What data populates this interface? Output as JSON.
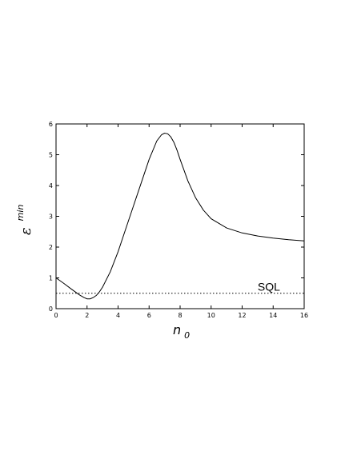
{
  "chart_data": {
    "type": "line",
    "title": "",
    "xlabel": {
      "main": "n",
      "sub": "0"
    },
    "ylabel": {
      "main": "ε",
      "sup": "min"
    },
    "xlim": [
      0,
      16
    ],
    "ylim": [
      0,
      6
    ],
    "xticks": [
      0,
      2,
      4,
      6,
      8,
      10,
      12,
      14,
      16
    ],
    "yticks": [
      0,
      1,
      2,
      3,
      4,
      5,
      6
    ],
    "grid": false,
    "legend": "none",
    "series": [
      {
        "style": "solid",
        "color": "#000000",
        "x": [
          0,
          0.5,
          1,
          1.5,
          1.8,
          2,
          2.2,
          2.4,
          2.6,
          2.8,
          3,
          3.5,
          4,
          4.5,
          5,
          5.5,
          6,
          6.5,
          6.8,
          7,
          7.2,
          7.4,
          7.6,
          7.8,
          8,
          8.5,
          9,
          9.5,
          10,
          11,
          12,
          13,
          14,
          15,
          16
        ],
        "y": [
          1.0,
          0.82,
          0.63,
          0.45,
          0.36,
          0.32,
          0.32,
          0.36,
          0.43,
          0.55,
          0.7,
          1.2,
          1.85,
          2.6,
          3.35,
          4.1,
          4.85,
          5.45,
          5.65,
          5.7,
          5.68,
          5.58,
          5.4,
          5.15,
          4.85,
          4.15,
          3.6,
          3.2,
          2.92,
          2.62,
          2.46,
          2.36,
          2.29,
          2.24,
          2.2
        ]
      },
      {
        "style": "dotted",
        "color": "#000000",
        "x": [
          0,
          16
        ],
        "y": [
          0.5,
          0.5
        ]
      }
    ],
    "annotations": [
      {
        "text": "SQL",
        "x": 13.0,
        "y": 0.72
      }
    ]
  }
}
